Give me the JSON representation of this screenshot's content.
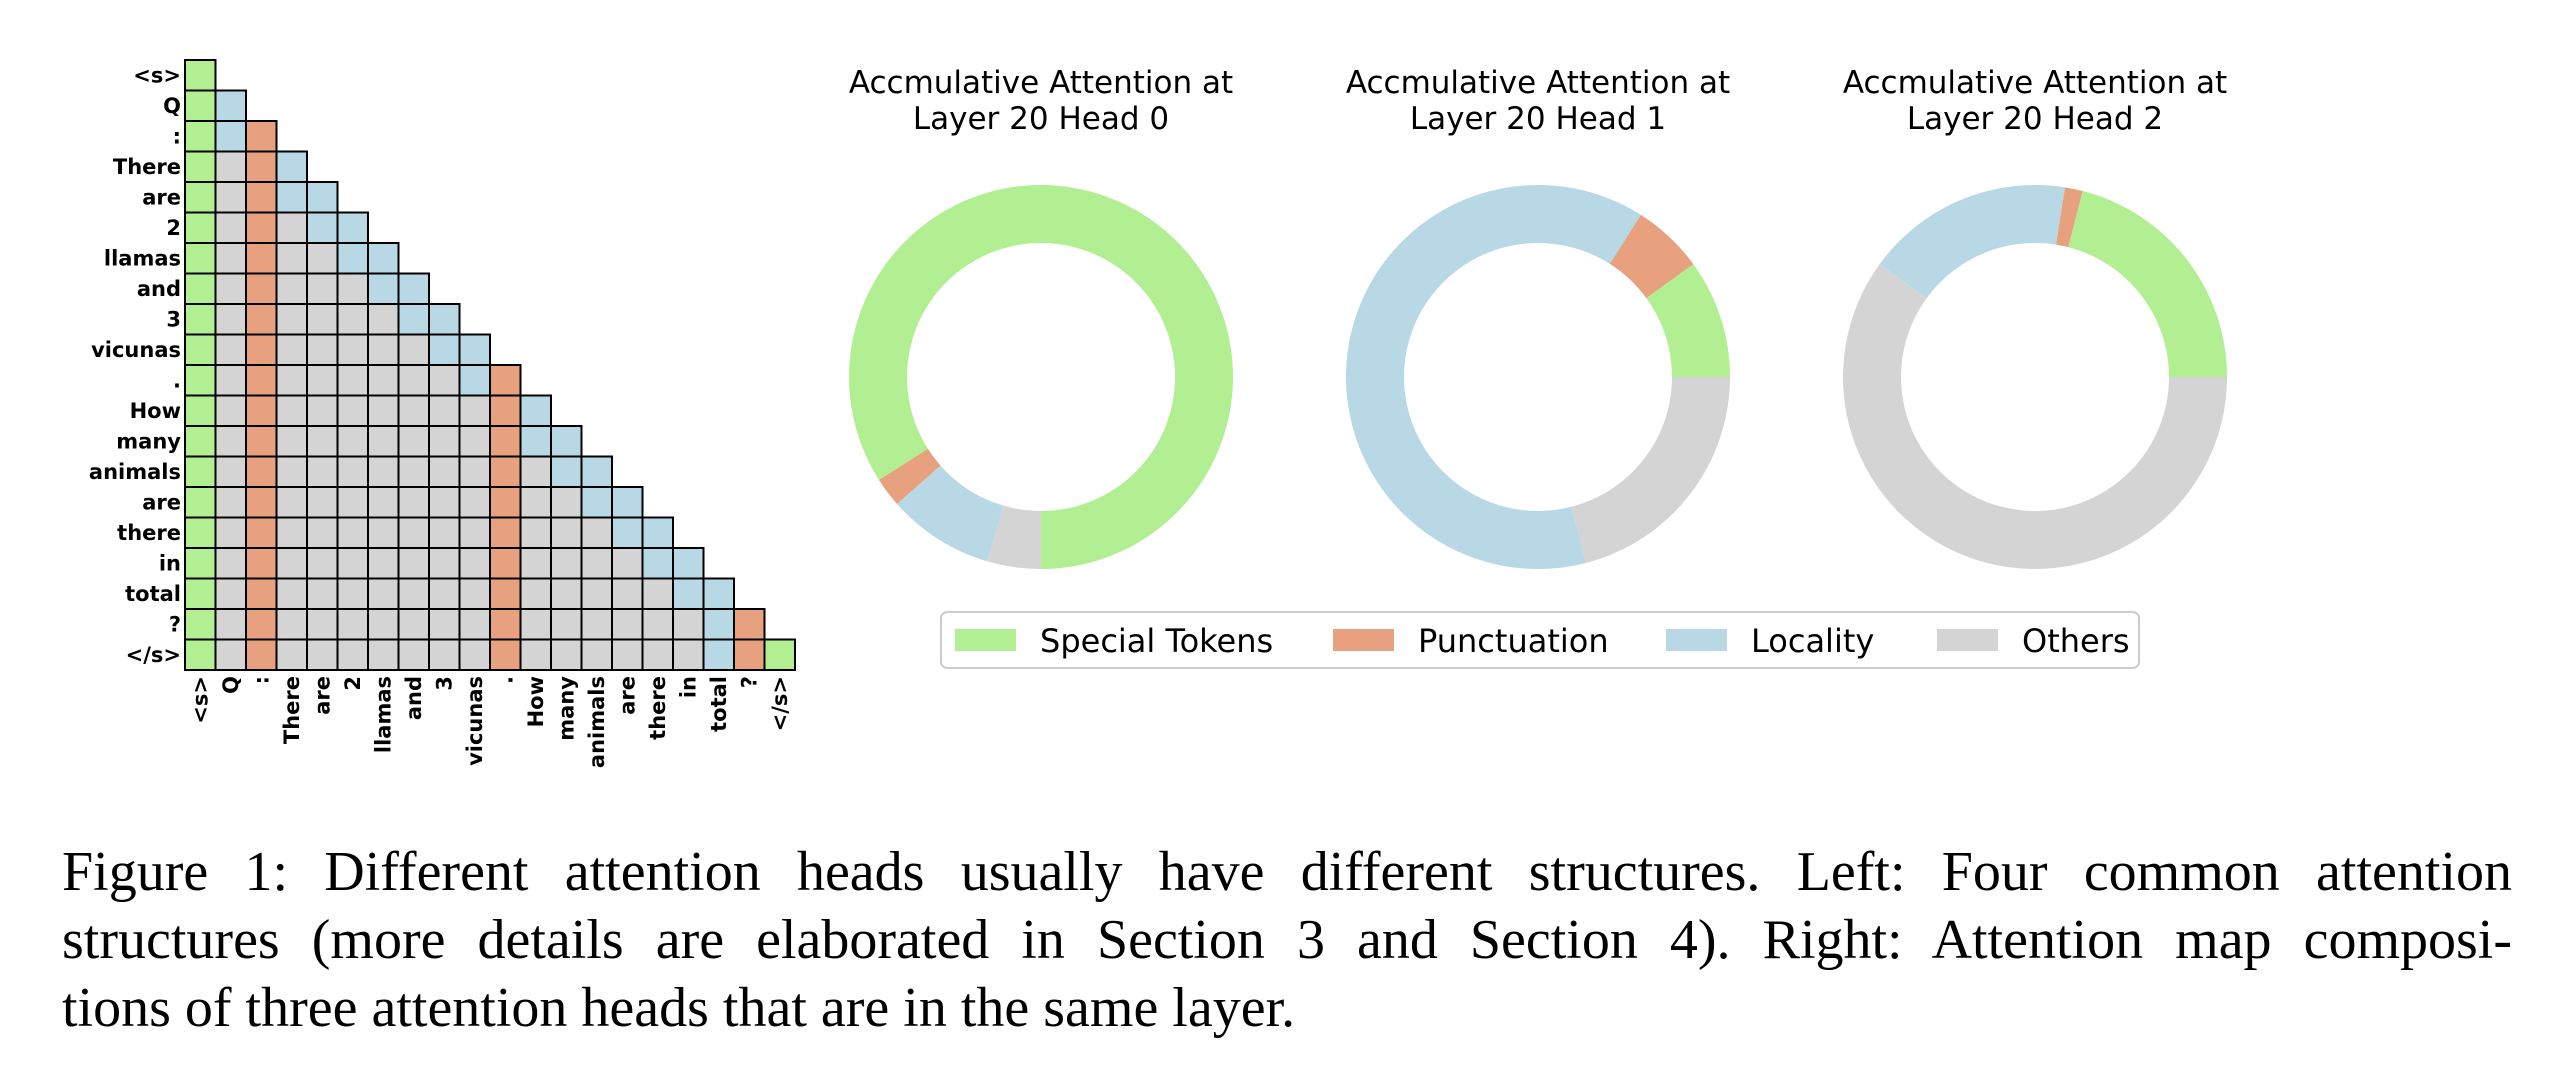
{
  "colors": {
    "special": "#b2ee92",
    "punctuation": "#e8a17e",
    "locality": "#b9d8e6",
    "others": "#d4d4d4"
  },
  "tokens": [
    "<s>",
    "Q",
    ":",
    "There",
    "are",
    "2",
    "llamas",
    "and",
    "3",
    "vicunas",
    ".",
    "How",
    "many",
    "animals",
    "are",
    "there",
    "in",
    "total",
    "?",
    "</s>"
  ],
  "chart_data": [
    {
      "type": "pie",
      "title": "Accmulative Attention at\nLayer 20 Head 0",
      "categories": [
        "Special Tokens",
        "Others",
        "Locality",
        "Punctuation",
        "Special Tokens"
      ],
      "values": [
        25,
        4.5,
        9,
        2.5,
        59
      ]
    },
    {
      "type": "pie",
      "title": "Accmulative Attention at\nLayer 20 Head 1",
      "categories": [
        "Others",
        "Locality",
        "Punctuation",
        "Special Tokens"
      ],
      "values": [
        21,
        63,
        6,
        10
      ]
    },
    {
      "type": "pie",
      "title": "Accmulative Attention at\nLayer 20 Head 2",
      "categories": [
        "Others",
        "Locality",
        "Punctuation",
        "Special Tokens"
      ],
      "values": [
        60,
        17.5,
        1.5,
        21
      ]
    }
  ],
  "legend": [
    {
      "label": "Special Tokens",
      "key": "special"
    },
    {
      "label": "Punctuation",
      "key": "punctuation"
    },
    {
      "label": "Locality",
      "key": "locality"
    },
    {
      "label": "Others",
      "key": "others"
    }
  ],
  "caption": {
    "lines": [
      "Figure 1: Different attention heads usually have different structures. Left: Four common attention",
      "structures (more details are elaborated in Section 3 and Section 4). Right: Attention map composi-",
      "tions of three attention heads that are in the same layer."
    ]
  }
}
